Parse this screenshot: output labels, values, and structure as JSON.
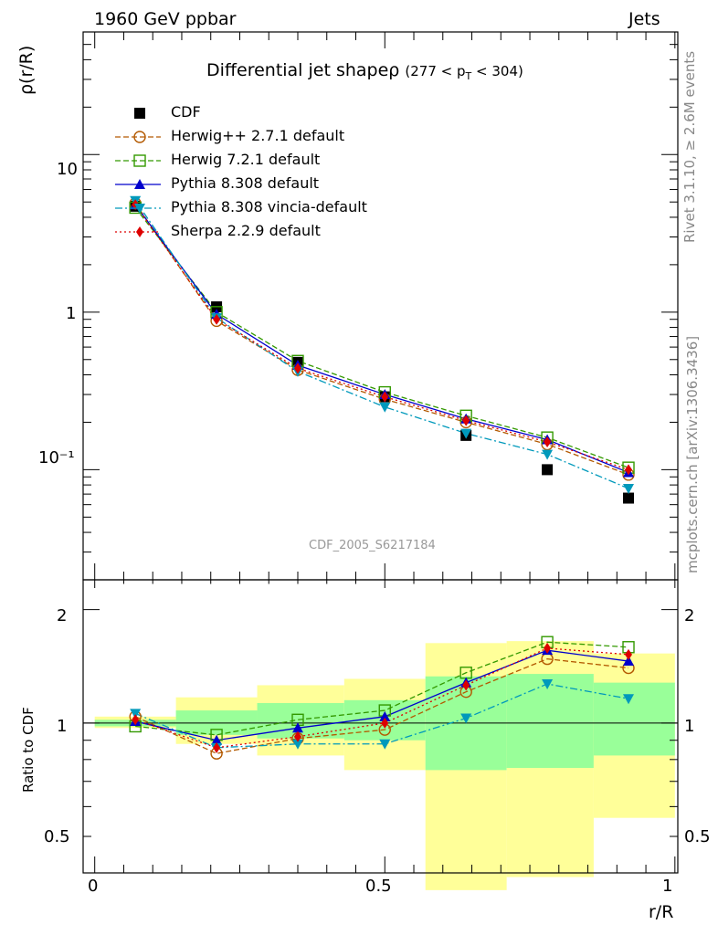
{
  "header": {
    "left": "1960 GeV ppbar",
    "right": "Jets"
  },
  "side_labels": {
    "rivet": "Rivet 3.1.10, ≥ 2.6M events",
    "mcplots": "mcplots.cern.ch [arXiv:1306.3436]"
  },
  "watermark": "CDF_2005_S6217184",
  "chart_data": [
    {
      "type": "line",
      "title": "Differential jet shapeρ",
      "title_range": "(277 < p_T < 304)",
      "ylabel": "ρ(r/R)",
      "xlabel": "r/R",
      "yscale": "log",
      "ylim": [
        0.02,
        60
      ],
      "xlim": [
        -0.02,
        1.005
      ],
      "y_tick_labels": [
        "10",
        "1",
        "10⁻¹"
      ],
      "legend_position": "top-left",
      "x": [
        0.07,
        0.21,
        0.35,
        0.5,
        0.64,
        0.78,
        0.92
      ],
      "series": [
        {
          "name": "CDF",
          "color": "#000000",
          "marker": "square-filled",
          "line": "none",
          "values": [
            4.7,
            1.08,
            0.48,
            0.29,
            0.165,
            0.1,
            0.066
          ]
        },
        {
          "name": "Herwig++ 2.7.1 default",
          "color": "#b35900",
          "marker": "circle-open",
          "line": "dashed",
          "values": [
            4.9,
            0.88,
            0.43,
            0.28,
            0.2,
            0.145,
            0.093
          ]
        },
        {
          "name": "Herwig 7.2.1 default",
          "color": "#339900",
          "marker": "square-open",
          "line": "dashed",
          "values": [
            4.6,
            1.0,
            0.49,
            0.31,
            0.22,
            0.16,
            0.103
          ]
        },
        {
          "name": "Pythia 8.308 default",
          "color": "#0000cc",
          "marker": "triangle-up",
          "line": "solid",
          "values": [
            4.8,
            0.97,
            0.46,
            0.3,
            0.21,
            0.155,
            0.096
          ]
        },
        {
          "name": "Pythia 8.308 vincia-default",
          "color": "#0099bb",
          "marker": "triangle-down",
          "line": "dashdot",
          "values": [
            5.1,
            0.92,
            0.42,
            0.25,
            0.17,
            0.125,
            0.076
          ]
        },
        {
          "name": "Sherpa 2.2.9 default",
          "color": "#dd0000",
          "marker": "diamond",
          "line": "dotted",
          "values": [
            4.8,
            0.9,
            0.44,
            0.29,
            0.205,
            0.15,
            0.1
          ]
        }
      ]
    },
    {
      "type": "line",
      "ylabel": "Ratio to CDF",
      "xlabel": "r/R",
      "yscale": "log",
      "ylim": [
        0.4,
        2.4
      ],
      "y_tick_labels": [
        "0.5",
        "1",
        "2"
      ],
      "x_tick_labels": [
        "0",
        "0.5",
        "1"
      ],
      "x": [
        0.07,
        0.21,
        0.35,
        0.5,
        0.64,
        0.78,
        0.92
      ],
      "bins": [
        0,
        0.14,
        0.28,
        0.43,
        0.57,
        0.71,
        0.86,
        1.0
      ],
      "band_green": [
        [
          0.98,
          1.02
        ],
        [
          0.93,
          1.08
        ],
        [
          0.91,
          1.13
        ],
        [
          0.9,
          1.15
        ],
        [
          0.75,
          1.33
        ],
        [
          0.76,
          1.35
        ],
        [
          0.82,
          1.28
        ]
      ],
      "band_yellow": [
        [
          0.97,
          1.04
        ],
        [
          0.88,
          1.17
        ],
        [
          0.82,
          1.26
        ],
        [
          0.75,
          1.31
        ],
        [
          0.36,
          1.63
        ],
        [
          0.39,
          1.65
        ],
        [
          0.56,
          1.53
        ]
      ],
      "series": [
        {
          "name": "Herwig++ 2.7.1 default",
          "values": [
            1.04,
            0.83,
            0.91,
            0.96,
            1.21,
            1.48,
            1.4
          ]
        },
        {
          "name": "Herwig 7.2.1 default",
          "values": [
            0.98,
            0.93,
            1.02,
            1.08,
            1.36,
            1.64,
            1.59
          ]
        },
        {
          "name": "Pythia 8.308 default",
          "values": [
            1.01,
            0.9,
            0.97,
            1.04,
            1.28,
            1.56,
            1.46
          ]
        },
        {
          "name": "Pythia 8.308 vincia-default",
          "values": [
            1.06,
            0.86,
            0.88,
            0.88,
            1.03,
            1.27,
            1.16
          ]
        },
        {
          "name": "Sherpa 2.2.9 default",
          "values": [
            1.02,
            0.86,
            0.92,
            1.0,
            1.26,
            1.58,
            1.52
          ]
        }
      ]
    }
  ]
}
